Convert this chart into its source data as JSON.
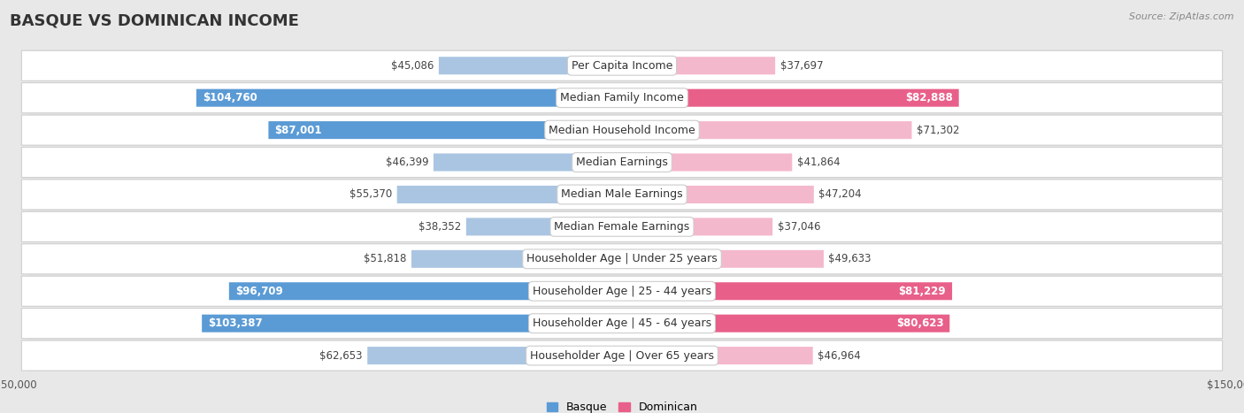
{
  "title": "BASQUE VS DOMINICAN INCOME",
  "source": "Source: ZipAtlas.com",
  "categories": [
    "Per Capita Income",
    "Median Family Income",
    "Median Household Income",
    "Median Earnings",
    "Median Male Earnings",
    "Median Female Earnings",
    "Householder Age | Under 25 years",
    "Householder Age | 25 - 44 years",
    "Householder Age | 45 - 64 years",
    "Householder Age | Over 65 years"
  ],
  "basque_values": [
    45086,
    104760,
    87001,
    46399,
    55370,
    38352,
    51818,
    96709,
    103387,
    62653
  ],
  "dominican_values": [
    37697,
    82888,
    71302,
    41864,
    47204,
    37046,
    49633,
    81229,
    80623,
    46964
  ],
  "basque_labels": [
    "$45,086",
    "$104,760",
    "$87,001",
    "$46,399",
    "$55,370",
    "$38,352",
    "$51,818",
    "$96,709",
    "$103,387",
    "$62,653"
  ],
  "dominican_labels": [
    "$37,697",
    "$82,888",
    "$71,302",
    "$41,864",
    "$47,204",
    "$37,046",
    "$49,633",
    "$81,229",
    "$80,623",
    "$46,964"
  ],
  "basque_color_light": "#aac5e2",
  "basque_color_dark": "#5b9bd5",
  "dominican_color_light": "#f4b8cc",
  "dominican_color_dark": "#e8608a",
  "basque_label_threshold": 75000,
  "dominican_label_threshold": 75000,
  "max_value": 150000,
  "background_color": "#e8e8e8",
  "row_bg_color": "#ffffff",
  "title_fontsize": 13,
  "label_fontsize": 8.5,
  "category_fontsize": 9,
  "legend_fontsize": 9,
  "axis_label_fontsize": 8.5
}
